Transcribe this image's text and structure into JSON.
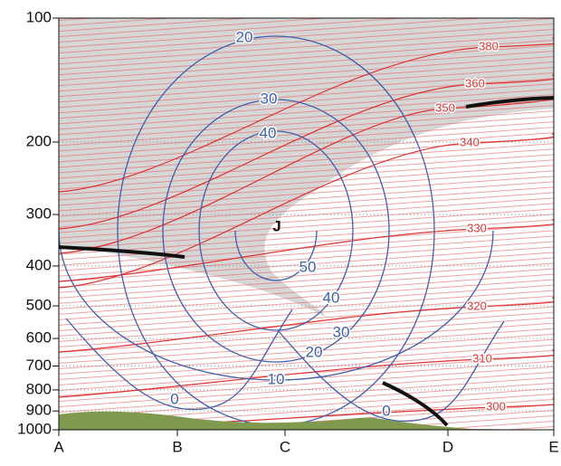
{
  "chart_data": {
    "type": "cross-section",
    "categories": [
      "A",
      "B",
      "C",
      "D",
      "E"
    ],
    "ylim": [
      1000,
      100
    ],
    "log_y": true,
    "yticks": [
      100,
      200,
      300,
      400,
      500,
      600,
      700,
      800,
      900,
      1000
    ],
    "grid": true,
    "isentropes": {
      "color": "#e03030",
      "values": [
        380,
        360,
        350,
        340,
        330,
        320,
        310,
        300
      ]
    },
    "isotachs": {
      "color": "#3c5fae",
      "values": [
        20,
        30,
        40,
        50,
        40,
        30,
        20,
        10,
        0,
        0
      ]
    },
    "annotations": [
      "J"
    ]
  }
}
